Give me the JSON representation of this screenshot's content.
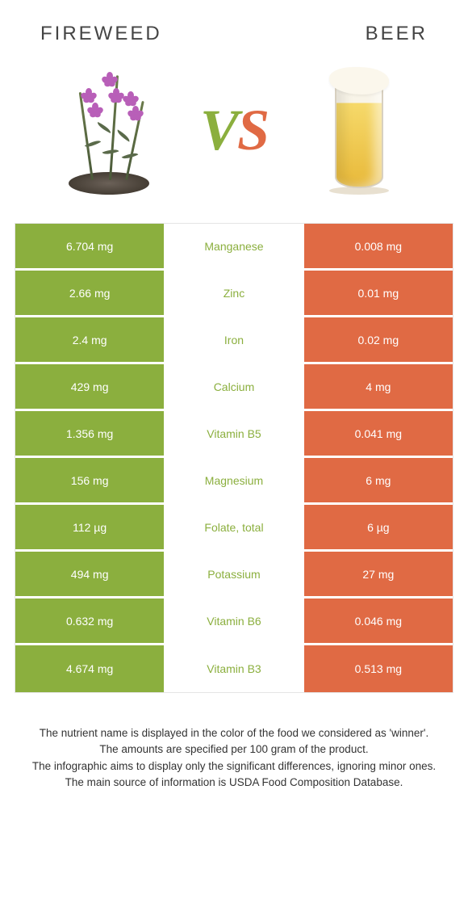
{
  "header": {
    "left_title": "Fireweed",
    "right_title": "Beer"
  },
  "vs": {
    "v": "V",
    "s": "S"
  },
  "colors": {
    "left_bg": "#8baf3e",
    "right_bg": "#e06a44",
    "left_text": "#8baf3e",
    "right_text": "#e06a44"
  },
  "nutrients": [
    {
      "name": "Manganese",
      "left": "6.704 mg",
      "right": "0.008 mg",
      "winner": "left"
    },
    {
      "name": "Zinc",
      "left": "2.66 mg",
      "right": "0.01 mg",
      "winner": "left"
    },
    {
      "name": "Iron",
      "left": "2.4 mg",
      "right": "0.02 mg",
      "winner": "left"
    },
    {
      "name": "Calcium",
      "left": "429 mg",
      "right": "4 mg",
      "winner": "left"
    },
    {
      "name": "Vitamin B5",
      "left": "1.356 mg",
      "right": "0.041 mg",
      "winner": "left"
    },
    {
      "name": "Magnesium",
      "left": "156 mg",
      "right": "6 mg",
      "winner": "left"
    },
    {
      "name": "Folate, total",
      "left": "112 µg",
      "right": "6 µg",
      "winner": "left"
    },
    {
      "name": "Potassium",
      "left": "494 mg",
      "right": "27 mg",
      "winner": "left"
    },
    {
      "name": "Vitamin B6",
      "left": "0.632 mg",
      "right": "0.046 mg",
      "winner": "left"
    },
    {
      "name": "Vitamin B3",
      "left": "4.674 mg",
      "right": "0.513 mg",
      "winner": "left"
    }
  ],
  "footer": {
    "line1": "The nutrient name is displayed in the color of the food we considered as 'winner'.",
    "line2": "The amounts are specified per 100 gram of the product.",
    "line3": "The infographic aims to display only the significant differences, ignoring minor ones.",
    "line4": "The main source of information is USDA Food Composition Database."
  }
}
